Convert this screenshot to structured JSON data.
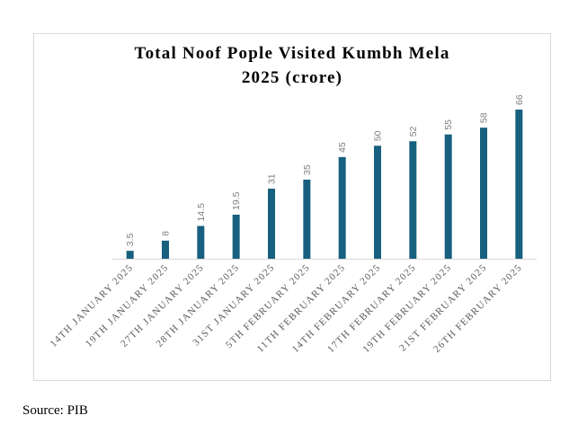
{
  "chart_data": {
    "type": "bar",
    "title_lines": [
      "Total Noof Pople Visited Kumbh Mela",
      "2025 (crore)"
    ],
    "categories": [
      "14TH JANUARY 2025",
      "19TH JANUARY 2025",
      "27TH JANUARY 2025",
      "28TH JANUARY 2025",
      "31ST JANUARY 2025",
      "5TH FEBRUARY 2025",
      "11TH FEBRUARY 2025",
      "14TH FEBRUARY 2025",
      "17TH FEBRUARY 2025",
      "19TH FEBRUARY 2025",
      "21ST FEBRUARY 2025",
      "26TH FEBRUARY 2025"
    ],
    "values": [
      3.5,
      8,
      14.5,
      19.5,
      31,
      35,
      45,
      50,
      52,
      55,
      58,
      66
    ],
    "value_labels": [
      "3.5",
      "8",
      "14.5",
      "19.5",
      "31",
      "35",
      "45",
      "50",
      "52",
      "55",
      "58",
      "66"
    ],
    "xlabel": "",
    "ylabel": "",
    "ylim": [
      0,
      66
    ],
    "grid": false,
    "legend": "none",
    "bar_color": "#17607f"
  },
  "source": "Source: PIB"
}
